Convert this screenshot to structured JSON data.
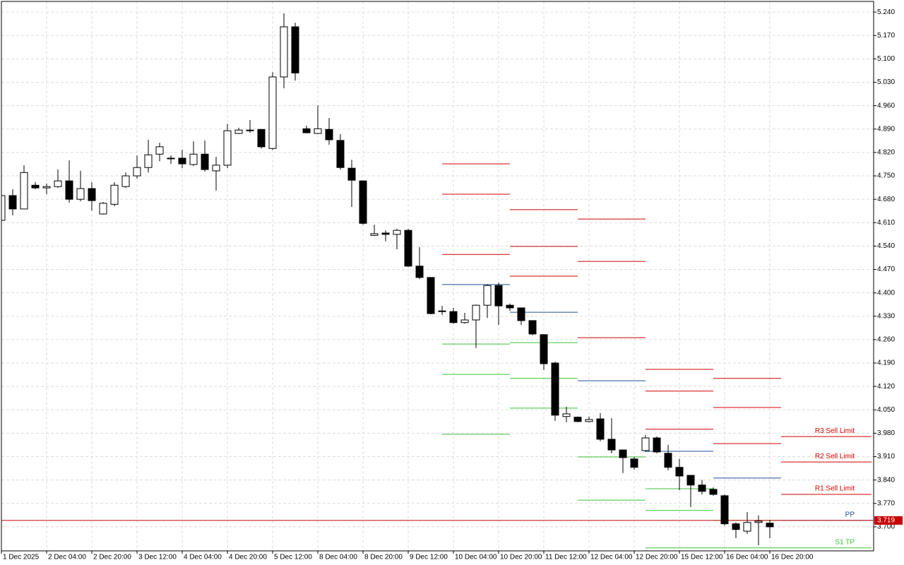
{
  "chart_data": {
    "type": "candlestick",
    "categories": [
      "1 Dec 2025",
      null,
      null,
      null,
      "2 Dec 04:00",
      null,
      null,
      null,
      "2 Dec 20:00",
      null,
      null,
      null,
      "3 Dec 12:00",
      null,
      null,
      null,
      "4 Dec 04:00",
      null,
      null,
      null,
      "4 Dec 20:00",
      null,
      null,
      null,
      "5 Dec 12:00",
      null,
      null,
      null,
      "8 Dec 04:00",
      null,
      null,
      null,
      "8 Dec 20:00",
      null,
      null,
      null,
      "9 Dec 12:00",
      null,
      null,
      null,
      "10 Dec 04:00",
      null,
      null,
      null,
      "10 Dec 20:00",
      null,
      null,
      null,
      "11 Dec 12:00",
      null,
      null,
      null,
      "12 Dec 04:00",
      null,
      null,
      null,
      "12 Dec 20:00",
      null,
      null,
      null,
      "15 Dec 12:00",
      null,
      null,
      null,
      "16 Dec 04:00",
      null,
      null,
      null,
      "16 Dec 20:00"
    ],
    "open": [
      4.617,
      4.691,
      4.651,
      4.722,
      4.714,
      4.718,
      4.735,
      4.68,
      4.712,
      4.636,
      4.665,
      4.718,
      4.75,
      4.775,
      4.815,
      4.801,
      4.803,
      4.784,
      4.815,
      4.765,
      4.782,
      4.877,
      4.885,
      4.889,
      4.832,
      5.046,
      5.196,
      4.891,
      4.877,
      4.889,
      4.856,
      4.773,
      4.735,
      4.572,
      4.579,
      4.575,
      4.587,
      4.48,
      4.446,
      4.346,
      4.344,
      4.311,
      4.319,
      4.363,
      4.422,
      4.363,
      4.355,
      4.317,
      4.275,
      4.19,
      4.03,
      4.028,
      4.015,
      4.023,
      3.962,
      3.93,
      3.903,
      3.928,
      3.966,
      3.92,
      3.878,
      3.854,
      3.825,
      3.812,
      3.793,
      3.709,
      3.687,
      3.713,
      3.711
    ],
    "high": [
      4.706,
      4.71,
      4.782,
      4.731,
      4.727,
      4.769,
      4.796,
      4.765,
      4.731,
      4.672,
      4.731,
      4.76,
      4.811,
      4.858,
      4.849,
      4.811,
      4.828,
      4.853,
      4.856,
      4.807,
      4.906,
      4.894,
      4.917,
      4.889,
      5.06,
      5.236,
      5.208,
      4.9,
      4.961,
      4.923,
      4.875,
      4.798,
      4.735,
      4.604,
      4.587,
      4.592,
      4.592,
      4.537,
      4.446,
      4.361,
      4.355,
      4.34,
      4.365,
      4.425,
      4.431,
      4.368,
      4.355,
      4.317,
      4.275,
      4.194,
      4.059,
      4.03,
      4.03,
      4.04,
      4.025,
      3.93,
      3.909,
      3.975,
      3.97,
      3.945,
      3.903,
      3.854,
      3.84,
      3.818,
      3.797,
      3.713,
      3.744,
      3.734,
      3.721
    ],
    "low": [
      4.617,
      4.632,
      4.651,
      4.71,
      4.695,
      4.714,
      4.67,
      4.674,
      4.646,
      4.634,
      4.659,
      4.714,
      4.742,
      4.76,
      4.794,
      4.786,
      4.773,
      4.78,
      4.763,
      4.706,
      4.773,
      4.875,
      4.879,
      4.832,
      4.828,
      5.012,
      5.035,
      4.877,
      4.875,
      4.843,
      4.769,
      4.657,
      4.604,
      4.57,
      4.554,
      4.53,
      4.477,
      4.441,
      4.336,
      4.334,
      4.308,
      4.308,
      4.235,
      4.325,
      4.304,
      4.346,
      4.304,
      4.273,
      4.169,
      4.017,
      4.013,
      4.013,
      4.013,
      3.956,
      3.92,
      3.861,
      3.871,
      3.924,
      3.92,
      3.869,
      3.81,
      3.759,
      3.797,
      3.793,
      3.704,
      3.666,
      3.679,
      3.645,
      3.666
    ],
    "close": [
      4.691,
      4.651,
      4.76,
      4.714,
      4.718,
      4.735,
      4.68,
      4.712,
      4.676,
      4.668,
      4.722,
      4.75,
      4.775,
      4.813,
      4.837,
      4.803,
      4.786,
      4.815,
      4.769,
      4.782,
      4.885,
      4.887,
      4.887,
      4.837,
      5.046,
      5.196,
      5.058,
      4.879,
      4.891,
      4.858,
      4.775,
      4.737,
      4.608,
      4.577,
      4.575,
      4.587,
      4.48,
      4.446,
      4.338,
      4.344,
      4.311,
      4.319,
      4.363,
      4.422,
      4.361,
      4.355,
      4.317,
      4.277,
      4.188,
      4.034,
      4.038,
      4.015,
      4.021,
      3.962,
      3.93,
      3.907,
      3.878,
      3.966,
      3.924,
      3.878,
      3.852,
      3.825,
      3.806,
      3.797,
      3.709,
      3.692,
      3.713,
      3.717,
      3.7
    ],
    "bull_color": "#ffffff",
    "bear_color": "#000000",
    "wick_color": "#000000",
    "ylim": [
      3.628,
      5.272
    ],
    "yticks": [
      {
        "value": 5.24,
        "label": "5.240"
      },
      {
        "value": 5.17,
        "label": "5.170"
      },
      {
        "value": 5.1,
        "label": "5.100"
      },
      {
        "value": 5.03,
        "label": "5.030"
      },
      {
        "value": 4.96,
        "label": "4.960"
      },
      {
        "value": 4.89,
        "label": "4.890"
      },
      {
        "value": 4.82,
        "label": "4.820"
      },
      {
        "value": 4.75,
        "label": "4.750"
      },
      {
        "value": 4.68,
        "label": "4.680"
      },
      {
        "value": 4.61,
        "label": "4.610"
      },
      {
        "value": 4.54,
        "label": "4.540"
      },
      {
        "value": 4.47,
        "label": "4.470"
      },
      {
        "value": 4.4,
        "label": "4.400"
      },
      {
        "value": 4.33,
        "label": "4.330"
      },
      {
        "value": 4.26,
        "label": "4.260"
      },
      {
        "value": 4.19,
        "label": "4.190"
      },
      {
        "value": 4.12,
        "label": "4.120"
      },
      {
        "value": 4.05,
        "label": "4.050"
      },
      {
        "value": 3.98,
        "label": "3.980"
      },
      {
        "value": 3.91,
        "label": "3.910"
      },
      {
        "value": 3.84,
        "label": "3.840"
      },
      {
        "value": 3.77,
        "label": "3.770"
      },
      {
        "value": 3.7,
        "label": "3.700"
      }
    ],
    "grid": true,
    "current_price": 3.719,
    "current_price_color": "#c80000",
    "level_sets": [
      [
        {
          "value": 4.786,
          "color": "#d40000"
        },
        {
          "value": 4.695,
          "color": "#d40000"
        },
        {
          "value": 4.515,
          "color": "#d40000"
        },
        {
          "value": 4.425,
          "color": "#1f4f9a"
        },
        {
          "value": 4.247,
          "color": "#3cc23c"
        },
        {
          "value": 4.156,
          "color": "#3cc23c"
        },
        {
          "value": 3.977,
          "color": "#3cc23c"
        }
      ],
      [
        {
          "value": 4.649,
          "color": "#d40000"
        },
        {
          "value": 4.539,
          "color": "#d40000"
        },
        {
          "value": 4.45,
          "color": "#d40000"
        },
        {
          "value": 4.342,
          "color": "#1f4f9a"
        },
        {
          "value": 4.251,
          "color": "#3cc23c"
        },
        {
          "value": 4.144,
          "color": "#3cc23c"
        },
        {
          "value": 4.055,
          "color": "#3cc23c"
        }
      ],
      [
        {
          "value": 4.621,
          "color": "#d40000"
        },
        {
          "value": 4.494,
          "color": "#d40000"
        },
        {
          "value": 4.266,
          "color": "#d40000"
        },
        {
          "value": 4.137,
          "color": "#1f4f9a"
        },
        {
          "value": 3.909,
          "color": "#3cc23c"
        },
        {
          "value": 3.78,
          "color": "#3cc23c"
        }
      ],
      [
        {
          "value": 4.171,
          "color": "#d40000"
        },
        {
          "value": 4.106,
          "color": "#d40000"
        },
        {
          "value": 3.992,
          "color": "#d40000"
        },
        {
          "value": 3.926,
          "color": "#1f4f9a"
        },
        {
          "value": 3.814,
          "color": "#3cc23c"
        },
        {
          "value": 3.749,
          "color": "#3cc23c"
        },
        {
          "value": 3.637,
          "color": "#3cc23c"
        }
      ],
      [
        {
          "value": 4.144,
          "color": "#d40000"
        },
        {
          "value": 4.057,
          "color": "#d40000"
        },
        {
          "value": 3.949,
          "color": "#d40000"
        },
        {
          "value": 3.846,
          "color": "#1f4f9a"
        },
        {
          "value": 3.719,
          "color": "#3cc23c"
        },
        {
          "value": 3.637,
          "color": "#3cc23c"
        }
      ],
      [
        {
          "value": 3.97,
          "color": "#d40000",
          "label": "R3 Sell Limit"
        },
        {
          "value": 3.894,
          "color": "#d40000",
          "label": "R2 Sell Limit"
        },
        {
          "value": 3.797,
          "color": "#d40000",
          "label": "R1 Sell Limit"
        },
        {
          "value": 3.719,
          "color": "#1f4f9a",
          "label": "PP"
        },
        {
          "value": 3.637,
          "color": "#3cc23c",
          "label": "S1 TP"
        }
      ]
    ]
  }
}
